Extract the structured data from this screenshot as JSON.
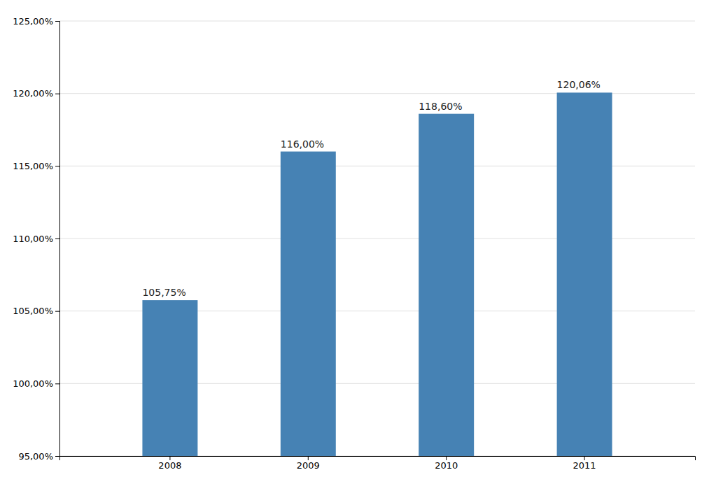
{
  "chart_data": {
    "type": "bar",
    "categories": [
      "2008",
      "2009",
      "2010",
      "2011"
    ],
    "values": [
      105.75,
      116.0,
      118.6,
      120.06
    ],
    "value_labels": [
      "105,75%",
      "116,00%",
      "118,60%",
      "120,06%"
    ],
    "data_labels": true,
    "color": "#4682b4",
    "ylim": [
      95.0,
      125.0
    ],
    "yticks": [
      {
        "value": 95.0,
        "label": "95,00%"
      },
      {
        "value": 100.0,
        "label": "100,00%"
      },
      {
        "value": 105.0,
        "label": "105,00%"
      },
      {
        "value": 110.0,
        "label": "110,00%"
      },
      {
        "value": 115.0,
        "label": "115,00%"
      },
      {
        "value": 120.0,
        "label": "120,00%"
      },
      {
        "value": 125.0,
        "label": "125,00%"
      }
    ],
    "grid": true
  }
}
